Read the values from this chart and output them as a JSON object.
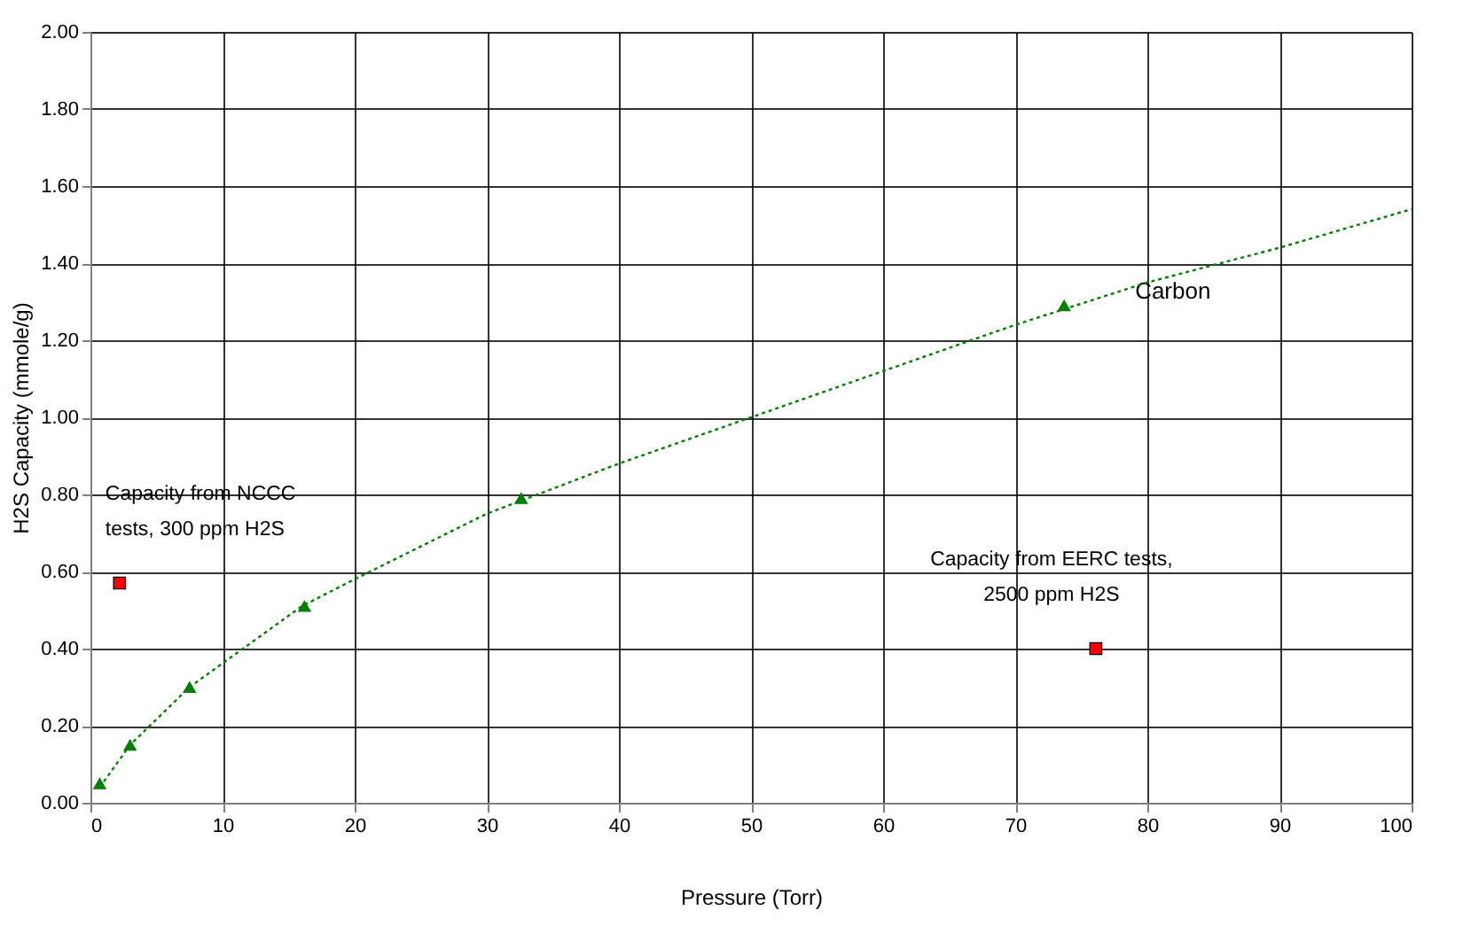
{
  "chart_data": {
    "type": "scatter",
    "xlabel": "Pressure  (Torr)",
    "ylabel": "H2S Capacity (mmole/g)",
    "xlim": [
      0,
      100
    ],
    "xticks": [
      0,
      10,
      20,
      30,
      40,
      50,
      60,
      70,
      80,
      90,
      100
    ],
    "ylim": [
      0,
      2
    ],
    "yticks": [
      {
        "value": 0,
        "label": "0.00"
      },
      {
        "value": 0.2,
        "label": "0.20"
      },
      {
        "value": 0.4,
        "label": "0.40"
      },
      {
        "value": 0.6,
        "label": "0.60"
      },
      {
        "value": 0.8,
        "label": "0.80"
      },
      {
        "value": 1.0,
        "label": "1.00"
      },
      {
        "value": 1.2,
        "label": "1.20"
      },
      {
        "value": 1.4,
        "label": "1.40"
      },
      {
        "value": 1.6,
        "label": "1.60"
      },
      {
        "value": 1.8,
        "label": "1.80"
      },
      {
        "value": 2.0,
        "label": "2.00"
      }
    ],
    "grid": true,
    "series": [
      {
        "name": "Carbon",
        "marker": "triangle",
        "color": "#008000",
        "x": [
          0.7,
          3,
          7.5,
          16.2,
          32.6,
          73.7
        ],
        "values": [
          0.05,
          0.15,
          0.3,
          0.51,
          0.79,
          1.29
        ]
      },
      {
        "type": "line",
        "line_style": "dotted",
        "marker": "none",
        "color": "#008000",
        "x": [
          0.7,
          3,
          7.5,
          16,
          20,
          30,
          40,
          50,
          60,
          70,
          80,
          90,
          100
        ],
        "values": [
          0.04,
          0.15,
          0.3,
          0.51,
          0.58,
          0.75,
          0.88,
          1.0,
          1.12,
          1.24,
          1.35,
          1.44,
          1.54
        ]
      },
      {
        "marker": "square",
        "color": "#ff0000",
        "x": [
          2.2,
          76.1
        ],
        "values": [
          0.57,
          0.4
        ]
      }
    ],
    "annotations": [
      {
        "text": "Capacity from NCCC\ntests, 300 ppm H2S",
        "x": 2.2,
        "y": 0.57
      },
      {
        "text": "Capacity from EERC tests,\n2500 ppm H2S",
        "x": 76.1,
        "y": 0.4
      }
    ]
  }
}
